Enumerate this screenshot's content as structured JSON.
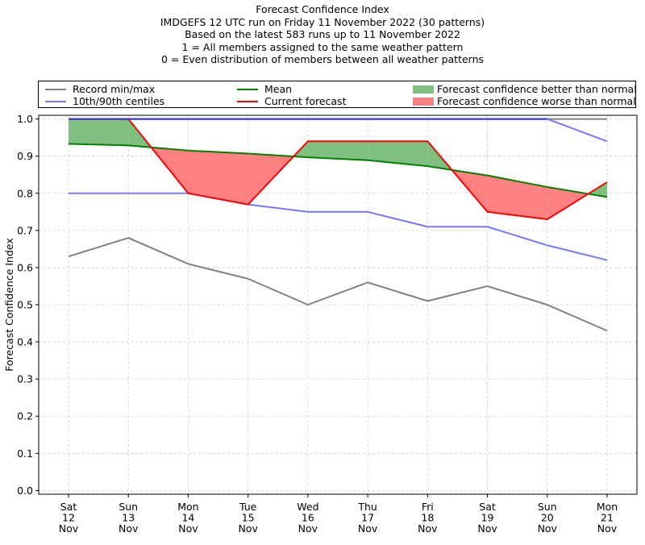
{
  "chart_data": {
    "type": "line",
    "title": "Forecast Confidence Index",
    "subtitle_lines": [
      "IMDGEFS 12 UTC run on Friday 11 November 2022 (30 patterns)",
      "Based on the latest 583 runs up to 11 November 2022",
      "1 = All members assigned to the same weather pattern",
      "0 = Even distribution of members between all weather patterns"
    ],
    "ylabel": "Forecast Confidence Index",
    "xlabel": "",
    "ylim": [
      -0.01,
      1.01
    ],
    "yticks": [
      "0.0",
      "0.1",
      "0.2",
      "0.3",
      "0.4",
      "0.5",
      "0.6",
      "0.7",
      "0.8",
      "0.9",
      "1.0"
    ],
    "grid": true,
    "legend_position": "top",
    "categories": [
      {
        "day": "Sat",
        "date": "12",
        "month": "Nov"
      },
      {
        "day": "Sun",
        "date": "13",
        "month": "Nov"
      },
      {
        "day": "Mon",
        "date": "14",
        "month": "Nov"
      },
      {
        "day": "Tue",
        "date": "15",
        "month": "Nov"
      },
      {
        "day": "Wed",
        "date": "16",
        "month": "Nov"
      },
      {
        "day": "Thu",
        "date": "17",
        "month": "Nov"
      },
      {
        "day": "Fri",
        "date": "18",
        "month": "Nov"
      },
      {
        "day": "Sat",
        "date": "19",
        "month": "Nov"
      },
      {
        "day": "Sun",
        "date": "20",
        "month": "Nov"
      },
      {
        "day": "Mon",
        "date": "21",
        "month": "Nov"
      }
    ],
    "series": [
      {
        "name": "Record max",
        "values": [
          1.0,
          1.0,
          1.0,
          1.0,
          1.0,
          1.0,
          1.0,
          1.0,
          1.0,
          1.0
        ],
        "color": "#808080"
      },
      {
        "name": "Record min",
        "values": [
          0.63,
          0.68,
          0.61,
          0.57,
          0.5,
          0.56,
          0.51,
          0.55,
          0.5,
          0.43
        ],
        "color": "#808080"
      },
      {
        "name": "90th centile",
        "values": [
          1.0,
          1.0,
          1.0,
          1.0,
          1.0,
          1.0,
          1.0,
          1.0,
          1.0,
          0.94
        ],
        "color": "#7777ff"
      },
      {
        "name": "10th centile",
        "values": [
          0.8,
          0.8,
          0.8,
          0.77,
          0.75,
          0.75,
          0.71,
          0.71,
          0.66,
          0.62
        ],
        "color": "#7777ff"
      },
      {
        "name": "Mean",
        "values": [
          0.933,
          0.929,
          0.915,
          0.907,
          0.897,
          0.889,
          0.873,
          0.848,
          0.817,
          0.79
        ],
        "color": "#008000"
      },
      {
        "name": "Current forecast",
        "values": [
          1.0,
          1.0,
          0.8,
          0.77,
          0.94,
          0.94,
          0.94,
          0.75,
          0.73,
          0.83
        ],
        "color": "#ff0000"
      }
    ],
    "fill_better_color": "#7fbf7f",
    "fill_worse_color": "#ff8080",
    "legend": [
      {
        "label": "Record min/max",
        "kind": "line",
        "color": "#808080"
      },
      {
        "label": "10th/90th centiles",
        "kind": "line",
        "color": "#7777ff"
      },
      {
        "label": "Mean",
        "kind": "line",
        "color": "#008000"
      },
      {
        "label": "Current forecast",
        "kind": "line",
        "color": "#ff0000"
      },
      {
        "label": "Forecast confidence better than normal",
        "kind": "patch",
        "color": "#7fbf7f"
      },
      {
        "label": "Forecast confidence worse than normal",
        "kind": "patch",
        "color": "#ff8080"
      }
    ]
  }
}
